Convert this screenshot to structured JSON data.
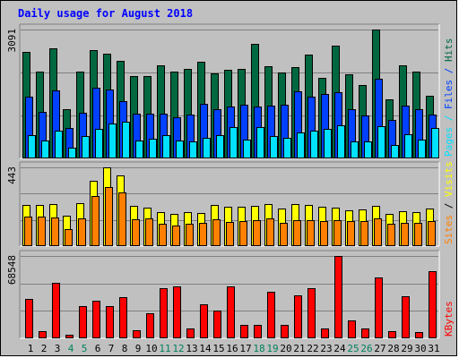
{
  "title": "Daily usage for August 2018",
  "colors": {
    "title": "#0000ff",
    "hits": "#006840",
    "files": "#0040ff",
    "pages": "#00e0ff",
    "visits": "#ffff00",
    "sites": "#ff8000",
    "kbytes": "#ff0000",
    "weekend_day": "#00805c",
    "weekday": "#000000",
    "panel_bg": "#c0c0c0"
  },
  "chart_data": [
    {
      "type": "bar",
      "panel": "top",
      "max_label": "3091",
      "right_label": [
        "Pages",
        "Files",
        "Hits"
      ],
      "ylim": [
        0,
        3091
      ],
      "categories": [
        "1",
        "2",
        "3",
        "4",
        "5",
        "6",
        "7",
        "8",
        "9",
        "10",
        "11",
        "12",
        "13",
        "14",
        "15",
        "16",
        "17",
        "18",
        "19",
        "20",
        "21",
        "22",
        "23",
        "24",
        "25",
        "26",
        "27",
        "28",
        "29",
        "30",
        "31"
      ],
      "weekend_days": [
        4,
        5,
        11,
        12,
        18,
        19,
        25,
        26
      ],
      "series": [
        {
          "name": "Hits",
          "color": "#006840",
          "values": [
            2550,
            2080,
            2630,
            1180,
            2080,
            2600,
            2520,
            2340,
            1970,
            1980,
            2240,
            2090,
            2140,
            2320,
            2030,
            2120,
            2140,
            2750,
            2220,
            2060,
            2190,
            2480,
            1930,
            2700,
            2020,
            1750,
            3091,
            1420,
            2240,
            2080,
            1500
          ]
        },
        {
          "name": "Files",
          "color": "#0040ff",
          "values": [
            1480,
            1120,
            1630,
            740,
            1100,
            1700,
            1660,
            1370,
            1080,
            1080,
            1080,
            990,
            1050,
            1300,
            1180,
            1240,
            1280,
            1250,
            1270,
            1280,
            1610,
            1480,
            1540,
            1590,
            1180,
            1040,
            1900,
            930,
            1260,
            1170,
            1060
          ]
        },
        {
          "name": "Pages",
          "color": "#00e0ff",
          "values": [
            560,
            440,
            670,
            260,
            530,
            700,
            830,
            880,
            440,
            470,
            560,
            440,
            410,
            500,
            550,
            760,
            460,
            750,
            540,
            490,
            630,
            660,
            710,
            790,
            410,
            410,
            780,
            320,
            580,
            460,
            730
          ]
        }
      ]
    },
    {
      "type": "bar",
      "panel": "middle",
      "max_label": "443",
      "right_label": [
        "Sites",
        "/",
        "Visits"
      ],
      "ylim": [
        0,
        443
      ],
      "categories": [
        "1",
        "2",
        "3",
        "4",
        "5",
        "6",
        "7",
        "8",
        "9",
        "10",
        "11",
        "12",
        "13",
        "14",
        "15",
        "16",
        "17",
        "18",
        "19",
        "20",
        "21",
        "22",
        "23",
        "24",
        "25",
        "26",
        "27",
        "28",
        "29",
        "30",
        "31"
      ],
      "series": [
        {
          "name": "Visits",
          "color": "#ffff00",
          "values": [
            230,
            230,
            235,
            170,
            240,
            370,
            443,
            400,
            225,
            215,
            190,
            180,
            190,
            185,
            230,
            220,
            220,
            225,
            235,
            210,
            235,
            230,
            220,
            215,
            200,
            205,
            225,
            180,
            195,
            190,
            210
          ]
        },
        {
          "name": "Sites",
          "color": "#ff8000",
          "values": [
            165,
            165,
            160,
            95,
            155,
            280,
            330,
            300,
            150,
            155,
            125,
            115,
            125,
            130,
            150,
            135,
            140,
            145,
            155,
            130,
            145,
            145,
            140,
            145,
            140,
            140,
            155,
            125,
            130,
            130,
            140
          ]
        }
      ]
    },
    {
      "type": "bar",
      "panel": "bottom",
      "max_label": "68548",
      "right_label": [
        "KBytes"
      ],
      "ylim": [
        0,
        68548
      ],
      "categories": [
        "1",
        "2",
        "3",
        "4",
        "5",
        "6",
        "7",
        "8",
        "9",
        "10",
        "11",
        "12",
        "13",
        "14",
        "15",
        "16",
        "17",
        "18",
        "19",
        "20",
        "21",
        "22",
        "23",
        "24",
        "25",
        "26",
        "27",
        "28",
        "29",
        "30",
        "31"
      ],
      "series": [
        {
          "name": "KBytes",
          "color": "#ff0000",
          "values": [
            33000,
            6000,
            46000,
            3000,
            27000,
            31000,
            27000,
            34000,
            7000,
            21000,
            42000,
            43000,
            8000,
            28000,
            23000,
            43000,
            11000,
            11000,
            39000,
            11000,
            36000,
            42000,
            8000,
            68548,
            15000,
            8000,
            51000,
            6000,
            35000,
            5000,
            56000
          ]
        }
      ]
    }
  ]
}
